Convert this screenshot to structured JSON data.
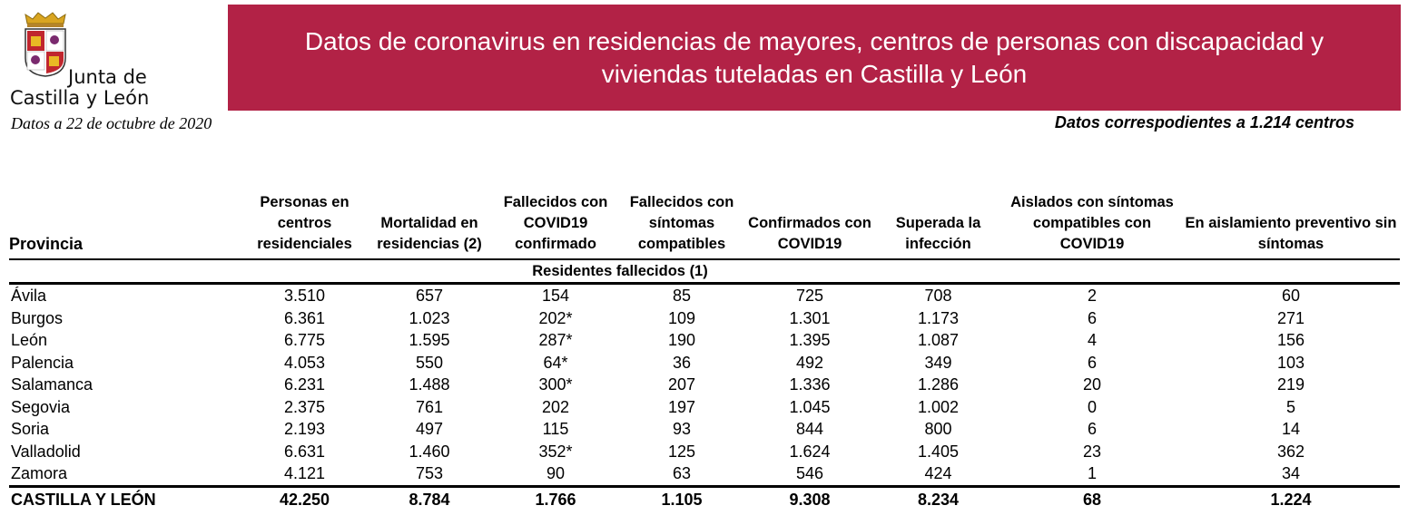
{
  "logo": {
    "line1": "Junta de",
    "line2": "Castilla y León"
  },
  "banner": {
    "title": "Datos de coronavirus en residencias de mayores, centros de personas con discapacidad y viviendas tuteladas en Castilla y León"
  },
  "date_text": "Datos a 22 de octubre de 2020",
  "centros_text": "Datos correspodientes a 1.214 centros",
  "table": {
    "headers": [
      "Provincia",
      "Personas en centros residenciales",
      "Mortalidad en residencias (2)",
      "Fallecidos con COVID19 confirmado",
      "Fallecidos con síntomas compatibles",
      "Confirmados con COVID19",
      "Superada la infección",
      "Aislados con síntomas compatibles con COVID19",
      "En aislamiento preventivo sin síntomas"
    ],
    "subheader": "Residentes fallecidos (1)",
    "rows": [
      [
        "Ávila",
        "3.510",
        "657",
        "154",
        "85",
        "725",
        "708",
        "2",
        "60"
      ],
      [
        "Burgos",
        "6.361",
        "1.023",
        "202*",
        "109",
        "1.301",
        "1.173",
        "6",
        "271"
      ],
      [
        "León",
        "6.775",
        "1.595",
        "287*",
        "190",
        "1.395",
        "1.087",
        "4",
        "156"
      ],
      [
        "Palencia",
        "4.053",
        "550",
        "64*",
        "36",
        "492",
        "349",
        "6",
        "103"
      ],
      [
        "Salamanca",
        "6.231",
        "1.488",
        "300*",
        "207",
        "1.336",
        "1.286",
        "20",
        "219"
      ],
      [
        "Segovia",
        "2.375",
        "761",
        "202",
        "197",
        "1.045",
        "1.002",
        "0",
        "5"
      ],
      [
        "Soria",
        "2.193",
        "497",
        "115",
        "93",
        "844",
        "800",
        "6",
        "14"
      ],
      [
        "Valladolid",
        "6.631",
        "1.460",
        "352*",
        "125",
        "1.624",
        "1.405",
        "23",
        "362"
      ],
      [
        "Zamora",
        "4.121",
        "753",
        "90",
        "63",
        "546",
        "424",
        "1",
        "34"
      ]
    ],
    "total": [
      "CASTILLA Y LEÓN",
      "42.250",
      "8.784",
      "1.766",
      "1.105",
      "9.308",
      "8.234",
      "68",
      "1.224"
    ]
  },
  "colors": {
    "banner": "#b22246",
    "text": "#000000"
  }
}
